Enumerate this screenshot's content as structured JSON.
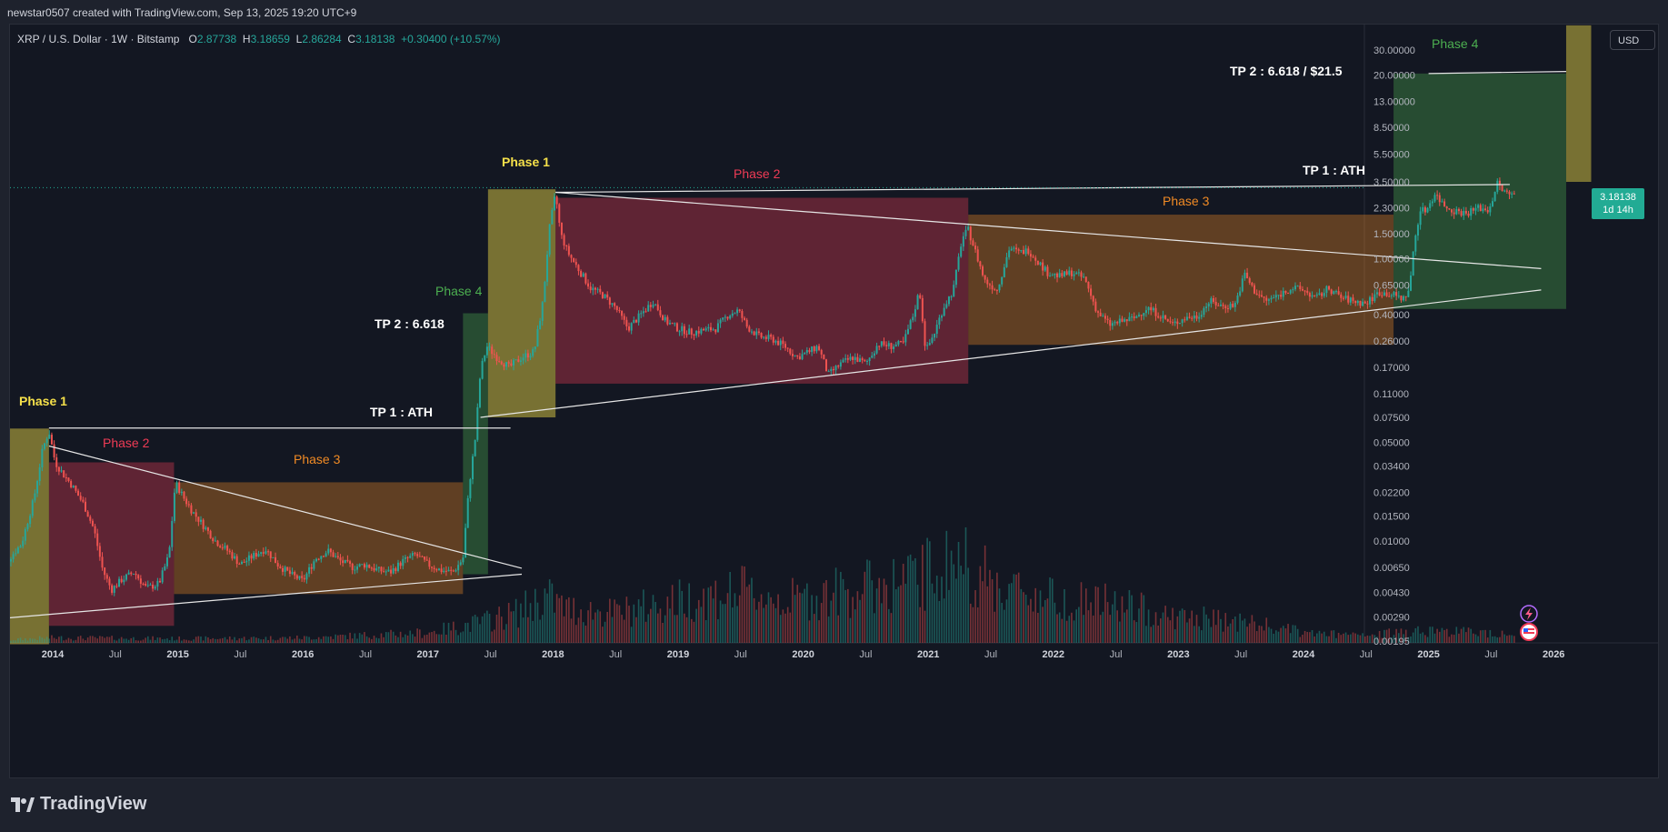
{
  "header": {
    "credit": "newstar0507 created with TradingView.com, Sep 13, 2025 19:20 UTC+9"
  },
  "symbol": {
    "name": "XRP / U.S. Dollar · 1W · Bitstamp",
    "o_label": "O",
    "o": "2.87738",
    "h_label": "H",
    "h": "3.18659",
    "l_label": "L",
    "l": "2.86284",
    "c_label": "C",
    "c": "3.18138",
    "change": "+0.30400 (+10.57%)"
  },
  "currency": "USD",
  "price_badge": {
    "price": "3.18138",
    "countdown": "1d 14h"
  },
  "footer": {
    "logo_text": "TradingView"
  },
  "colors": {
    "up": "#26a69a",
    "down": "#ef5350",
    "phase1": "#f5e04a",
    "phase2": "#ef3b55",
    "phase3": "#f08a24",
    "phase4": "#4caf50"
  },
  "chart_data": {
    "type": "candlestick",
    "scale": "log",
    "y_ticks": [
      "30.00000",
      "20.00000",
      "13.00000",
      "8.50000",
      "5.50000",
      "3.50000",
      "2.30000",
      "1.50000",
      "1.00000",
      "0.65000",
      "0.40000",
      "0.26000",
      "0.17000",
      "0.11000",
      "0.07500",
      "0.05000",
      "0.03400",
      "0.02200",
      "0.01500",
      "0.01000",
      "0.00650",
      "0.00430",
      "0.00290",
      "0.00195"
    ],
    "x_ticks": [
      {
        "label": "2014",
        "t": 2014.0,
        "bold": true
      },
      {
        "label": "Jul",
        "t": 2014.5
      },
      {
        "label": "2015",
        "t": 2015.0,
        "bold": true
      },
      {
        "label": "Jul",
        "t": 2015.5
      },
      {
        "label": "2016",
        "t": 2016.0,
        "bold": true
      },
      {
        "label": "Jul",
        "t": 2016.5
      },
      {
        "label": "2017",
        "t": 2017.0,
        "bold": true
      },
      {
        "label": "Jul",
        "t": 2017.5
      },
      {
        "label": "2018",
        "t": 2018.0,
        "bold": true
      },
      {
        "label": "Jul",
        "t": 2018.5
      },
      {
        "label": "2019",
        "t": 2019.0,
        "bold": true
      },
      {
        "label": "Jul",
        "t": 2019.5
      },
      {
        "label": "2020",
        "t": 2020.0,
        "bold": true
      },
      {
        "label": "Jul",
        "t": 2020.5
      },
      {
        "label": "2021",
        "t": 2021.0,
        "bold": true
      },
      {
        "label": "Jul",
        "t": 2021.5
      },
      {
        "label": "2022",
        "t": 2022.0,
        "bold": true
      },
      {
        "label": "Jul",
        "t": 2022.5
      },
      {
        "label": "2023",
        "t": 2023.0,
        "bold": true
      },
      {
        "label": "Jul",
        "t": 2023.5
      },
      {
        "label": "2024",
        "t": 2024.0,
        "bold": true
      },
      {
        "label": "Jul",
        "t": 2024.5
      },
      {
        "label": "2025",
        "t": 2025.0,
        "bold": true
      },
      {
        "label": "Jul",
        "t": 2025.5
      },
      {
        "label": "2026",
        "t": 2026.0,
        "bold": true
      }
    ],
    "price_path": [
      [
        2013.55,
        0.0058
      ],
      [
        2013.65,
        0.0075
      ],
      [
        2013.75,
        0.0095
      ],
      [
        2013.85,
        0.02
      ],
      [
        2013.92,
        0.045
      ],
      [
        2013.97,
        0.06
      ],
      [
        2014.02,
        0.036
      ],
      [
        2014.08,
        0.03
      ],
      [
        2014.15,
        0.025
      ],
      [
        2014.25,
        0.018
      ],
      [
        2014.33,
        0.012
      ],
      [
        2014.4,
        0.0062
      ],
      [
        2014.47,
        0.0045
      ],
      [
        2014.55,
        0.0053
      ],
      [
        2014.65,
        0.006
      ],
      [
        2014.75,
        0.0046
      ],
      [
        2014.85,
        0.005
      ],
      [
        2014.93,
        0.008
      ],
      [
        2014.98,
        0.026
      ],
      [
        2015.05,
        0.02
      ],
      [
        2015.12,
        0.016
      ],
      [
        2015.2,
        0.013
      ],
      [
        2015.3,
        0.01
      ],
      [
        2015.4,
        0.0085
      ],
      [
        2015.5,
        0.0068
      ],
      [
        2015.6,
        0.0078
      ],
      [
        2015.7,
        0.0088
      ],
      [
        2015.8,
        0.0068
      ],
      [
        2015.9,
        0.0058
      ],
      [
        2016.0,
        0.0052
      ],
      [
        2016.1,
        0.0075
      ],
      [
        2016.2,
        0.0085
      ],
      [
        2016.3,
        0.0072
      ],
      [
        2016.4,
        0.0065
      ],
      [
        2016.5,
        0.0068
      ],
      [
        2016.6,
        0.0062
      ],
      [
        2016.7,
        0.006
      ],
      [
        2016.8,
        0.0072
      ],
      [
        2016.9,
        0.008
      ],
      [
        2017.0,
        0.0068
      ],
      [
        2017.1,
        0.0062
      ],
      [
        2017.2,
        0.006
      ],
      [
        2017.28,
        0.0075
      ],
      [
        2017.33,
        0.025
      ],
      [
        2017.38,
        0.055
      ],
      [
        2017.42,
        0.16
      ],
      [
        2017.47,
        0.24
      ],
      [
        2017.55,
        0.2
      ],
      [
        2017.65,
        0.17
      ],
      [
        2017.75,
        0.2
      ],
      [
        2017.85,
        0.22
      ],
      [
        2017.92,
        0.5
      ],
      [
        2017.97,
        1.6
      ],
      [
        2018.02,
        2.9
      ],
      [
        2018.06,
        1.5
      ],
      [
        2018.12,
        1.1
      ],
      [
        2018.2,
        0.85
      ],
      [
        2018.3,
        0.62
      ],
      [
        2018.4,
        0.55
      ],
      [
        2018.5,
        0.45
      ],
      [
        2018.6,
        0.32
      ],
      [
        2018.7,
        0.4
      ],
      [
        2018.8,
        0.5
      ],
      [
        2018.9,
        0.36
      ],
      [
        2019.0,
        0.32
      ],
      [
        2019.1,
        0.3
      ],
      [
        2019.2,
        0.31
      ],
      [
        2019.3,
        0.32
      ],
      [
        2019.4,
        0.4
      ],
      [
        2019.48,
        0.43
      ],
      [
        2019.55,
        0.33
      ],
      [
        2019.65,
        0.28
      ],
      [
        2019.75,
        0.27
      ],
      [
        2019.85,
        0.24
      ],
      [
        2019.95,
        0.2
      ],
      [
        2020.05,
        0.22
      ],
      [
        2020.12,
        0.24
      ],
      [
        2020.2,
        0.15
      ],
      [
        2020.3,
        0.18
      ],
      [
        2020.4,
        0.2
      ],
      [
        2020.5,
        0.18
      ],
      [
        2020.6,
        0.25
      ],
      [
        2020.7,
        0.24
      ],
      [
        2020.8,
        0.25
      ],
      [
        2020.88,
        0.4
      ],
      [
        2020.93,
        0.6
      ],
      [
        2020.98,
        0.22
      ],
      [
        2021.05,
        0.3
      ],
      [
        2021.12,
        0.45
      ],
      [
        2021.2,
        0.6
      ],
      [
        2021.27,
        1.4
      ],
      [
        2021.32,
        1.6
      ],
      [
        2021.38,
        1.1
      ],
      [
        2021.45,
        0.7
      ],
      [
        2021.55,
        0.6
      ],
      [
        2021.65,
        1.2
      ],
      [
        2021.72,
        1.1
      ],
      [
        2021.8,
        1.15
      ],
      [
        2021.88,
        0.95
      ],
      [
        2021.95,
        0.8
      ],
      [
        2022.05,
        0.75
      ],
      [
        2022.15,
        0.8
      ],
      [
        2022.25,
        0.72
      ],
      [
        2022.35,
        0.42
      ],
      [
        2022.45,
        0.34
      ],
      [
        2022.55,
        0.36
      ],
      [
        2022.65,
        0.38
      ],
      [
        2022.75,
        0.45
      ],
      [
        2022.85,
        0.4
      ],
      [
        2022.95,
        0.34
      ],
      [
        2023.05,
        0.38
      ],
      [
        2023.15,
        0.39
      ],
      [
        2023.25,
        0.5
      ],
      [
        2023.35,
        0.46
      ],
      [
        2023.45,
        0.47
      ],
      [
        2023.53,
        0.78
      ],
      [
        2023.6,
        0.6
      ],
      [
        2023.7,
        0.5
      ],
      [
        2023.8,
        0.55
      ],
      [
        2023.9,
        0.62
      ],
      [
        2024.0,
        0.6
      ],
      [
        2024.1,
        0.52
      ],
      [
        2024.2,
        0.62
      ],
      [
        2024.3,
        0.53
      ],
      [
        2024.4,
        0.5
      ],
      [
        2024.5,
        0.48
      ],
      [
        2024.6,
        0.58
      ],
      [
        2024.7,
        0.56
      ],
      [
        2024.8,
        0.52
      ],
      [
        2024.85,
        0.62
      ],
      [
        2024.88,
        1.2
      ],
      [
        2024.93,
        2.2
      ],
      [
        2024.98,
        2.2
      ],
      [
        2025.05,
        2.9
      ],
      [
        2025.12,
        2.4
      ],
      [
        2025.2,
        2.2
      ],
      [
        2025.3,
        2.1
      ],
      [
        2025.4,
        2.3
      ],
      [
        2025.48,
        2.2
      ],
      [
        2025.55,
        3.4
      ],
      [
        2025.6,
        3.0
      ],
      [
        2025.65,
        2.8
      ],
      [
        2025.7,
        3.18
      ]
    ],
    "volume_profile": [
      [
        2013.55,
        0.03
      ],
      [
        2014.0,
        0.06
      ],
      [
        2015.0,
        0.05
      ],
      [
        2016.0,
        0.06
      ],
      [
        2017.0,
        0.12
      ],
      [
        2017.45,
        0.25
      ],
      [
        2017.7,
        0.35
      ],
      [
        2017.95,
        0.55
      ],
      [
        2018.1,
        0.4
      ],
      [
        2018.5,
        0.35
      ],
      [
        2019.0,
        0.5
      ],
      [
        2019.5,
        0.6
      ],
      [
        2019.9,
        0.5
      ],
      [
        2020.3,
        0.6
      ],
      [
        2020.9,
        0.75
      ],
      [
        2021.25,
        1.0
      ],
      [
        2021.5,
        0.7
      ],
      [
        2021.9,
        0.55
      ],
      [
        2022.5,
        0.45
      ],
      [
        2023.0,
        0.3
      ],
      [
        2023.5,
        0.25
      ],
      [
        2024.0,
        0.12
      ],
      [
        2024.5,
        0.08
      ],
      [
        2024.9,
        0.15
      ],
      [
        2025.5,
        0.12
      ]
    ]
  },
  "annotations": {
    "phase1_a": "Phase 1",
    "phase2_a": "Phase 2",
    "phase3_a": "Phase 3",
    "phase4_a": "Phase 4",
    "tp2_a": "TP 2 : 6.618",
    "tp1_a": "TP 1 : ATH",
    "phase1_b": "Phase 1",
    "phase2_b": "Phase 2",
    "phase3_b": "Phase 3",
    "phase4_b": "Phase 4",
    "tp1_b": "TP 1 : ATH",
    "tp2_b": "TP 2 : 6.618 / $21.5"
  }
}
